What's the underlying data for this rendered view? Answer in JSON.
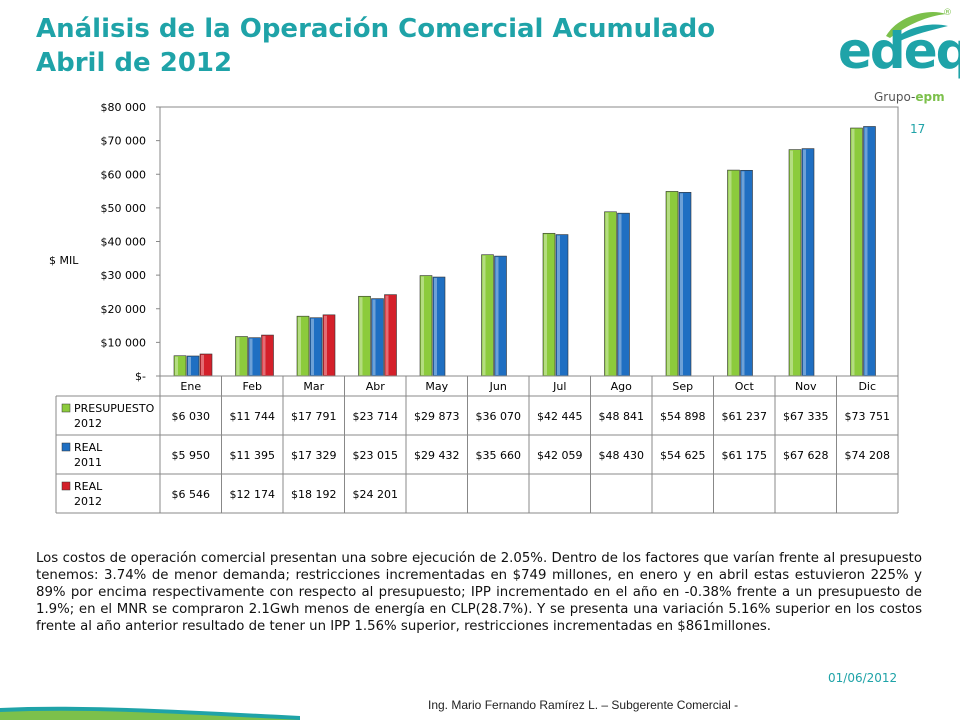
{
  "header": {
    "title_line1": "Análisis de la Operación Comercial Acumulado",
    "title_line2": "Abril de 2012",
    "page_number": "17"
  },
  "logo": {
    "wordmark": "edeq",
    "group_prefix": "Grupo-",
    "group_brand": "epm",
    "registered": "®"
  },
  "colors": {
    "title": "#1fa3a8",
    "presupuesto": "#8ccb3c",
    "real_2011": "#1f6fc2",
    "real_2012": "#d4202a"
  },
  "chart_data": {
    "type": "bar",
    "ylabel": "$ MIL",
    "ylim": [
      0,
      80000
    ],
    "y_ticks": [
      "$-",
      "$10 000",
      "$20 000",
      "$30 000",
      "$40 000",
      "$50 000",
      "$60 000",
      "$70 000",
      "$80 000"
    ],
    "categories": [
      "Ene",
      "Feb",
      "Mar",
      "Abr",
      "May",
      "Jun",
      "Jul",
      "Ago",
      "Sep",
      "Oct",
      "Nov",
      "Dic"
    ],
    "series": [
      {
        "name": "PRESUPUESTO 2012",
        "name_lines": [
          "PRESUPUESTO",
          "2012"
        ],
        "values": [
          6030,
          11744,
          17791,
          23714,
          29873,
          36070,
          42445,
          48841,
          54898,
          61237,
          67335,
          73751
        ],
        "labels": [
          "$6 030",
          "$11 744",
          "$17 791",
          "$23 714",
          "$29 873",
          "$36 070",
          "$42 445",
          "$48 841",
          "$54 898",
          "$61 237",
          "$67 335",
          "$73 751"
        ]
      },
      {
        "name": "REAL 2011",
        "name_lines": [
          "REAL",
          "2011"
        ],
        "values": [
          5950,
          11395,
          17329,
          23015,
          29432,
          35660,
          42059,
          48430,
          54625,
          61175,
          67628,
          74208
        ],
        "labels": [
          "$5 950",
          "$11 395",
          "$17 329",
          "$23 015",
          "$29 432",
          "$35 660",
          "$42 059",
          "$48 430",
          "$54 625",
          "$61 175",
          "$67 628",
          "$74 208"
        ]
      },
      {
        "name": "REAL 2012",
        "name_lines": [
          "REAL",
          "2012"
        ],
        "values": [
          6546,
          12174,
          18192,
          24201,
          null,
          null,
          null,
          null,
          null,
          null,
          null,
          null
        ],
        "labels": [
          "$6 546",
          "$12 174",
          "$18 192",
          "$24 201",
          "",
          "",
          "",
          "",
          "",
          "",
          "",
          ""
        ]
      }
    ]
  },
  "body_text": "Los costos de operación comercial presentan una sobre ejecución de 2.05%. Dentro de los factores que varían frente al presupuesto tenemos: 3.74% de menor demanda; restricciones incrementadas en $749 millones, en enero y en abril estas estuvieron 225% y 89% por encima respectivamente con respecto al presupuesto; IPP incrementado en el año en -0.38% frente a un presupuesto de 1.9%; en el MNR se compraron 2.1Gwh menos de energía en CLP(28.7%). Y se presenta una variación 5.16% superior en los costos frente al año anterior resultado de tener un IPP 1.56% superior, restricciones incrementadas en $861millones.",
  "footer": {
    "date": "01/06/2012",
    "author": "Ing. Mario Fernando Ramírez L. – Subgerente Comercial -"
  }
}
